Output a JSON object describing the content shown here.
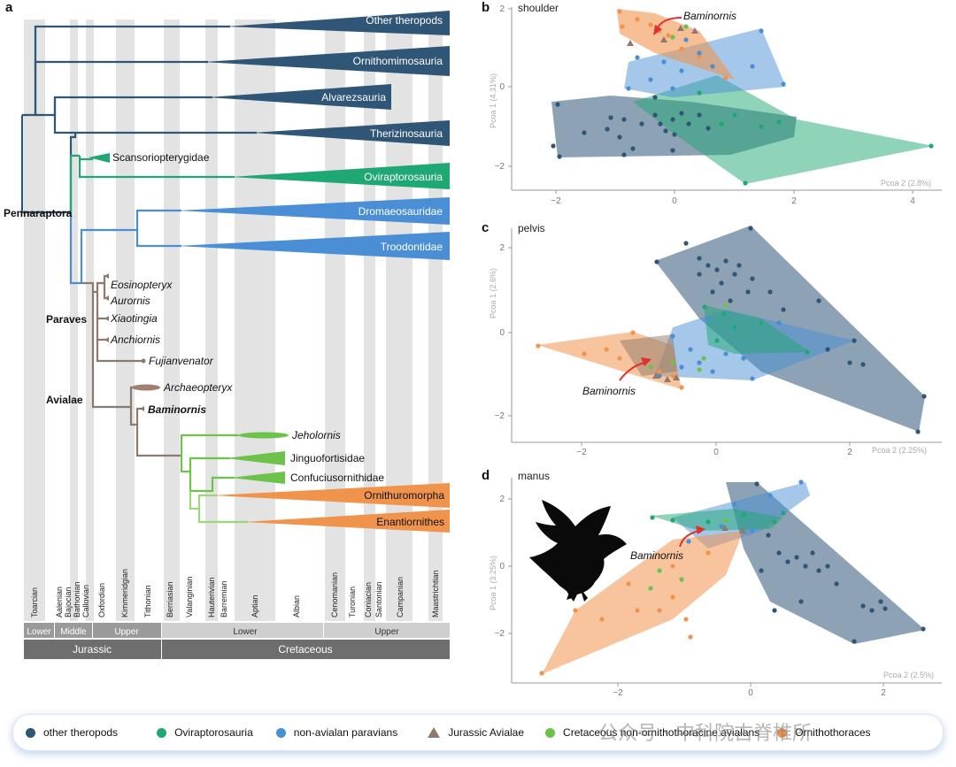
{
  "panel_a": {
    "letter": "a",
    "clades": [
      "Other theropods",
      "Ornithomimosauria",
      "Alvarezsauria",
      "Therizinosauria",
      "Oviraptorosauria",
      "Dromaeosauridae",
      "Troodontidae",
      "Ornithuromorpha",
      "Enantiornithes"
    ],
    "taxa": {
      "scansoriopterygidae": "Scansoriopterygidae",
      "eosinopteryx": "Eosinopteryx",
      "aurornis": "Aurornis",
      "xiaotingia": "Xiaotingia",
      "anchiornis": "Anchiornis",
      "fujianvenator": "Fujianvenator",
      "archaeopteryx": "Archaeopteryx",
      "baminornis": "Baminornis",
      "jeholornis": "Jeholornis",
      "jinguofortisidae": "Jinguofortisidae",
      "confuciusornithidae": "Confuciusornithidae"
    },
    "nodes": {
      "pennaraptora": "Pennaraptora",
      "paraves": "Paraves",
      "avialae": "Avialae"
    },
    "stages": [
      "Toarcian",
      "Aalenian",
      "Bajocian",
      "Bathonian",
      "Callovian",
      "Oxfordian",
      "Kimmeridgian",
      "Tithonian",
      "Berriasian",
      "Valanginian",
      "Hauterivian",
      "Barremian",
      "Aptian",
      "Albian",
      "Cenomanian",
      "Turonian",
      "Coniacian",
      "Santonian",
      "Campanian",
      "Maastrichtian"
    ],
    "epochs": {
      "lower_j": "Lower",
      "middle_j": "Middle",
      "upper_j": "Upper",
      "lower_k": "Lower",
      "upper_k": "Upper"
    },
    "periods": {
      "jurassic": "Jurassic",
      "cretaceous": "Cretaceous"
    }
  },
  "panel_b": {
    "letter": "b",
    "title": "shoulder",
    "ylabel": "Pcoa 1 (4.31%)",
    "xlabel": "Pcoa 2 (2.8%)",
    "xticks": [
      "−2",
      "0",
      "2",
      "4"
    ],
    "yticks": [
      "2",
      "0",
      "−2"
    ],
    "annotation": "Baminornis"
  },
  "panel_c": {
    "letter": "c",
    "title": "pelvis",
    "ylabel": "Pcoa 1 (2.6%)",
    "xlabel": "Pcoa 2 (2.25%)",
    "xticks": [
      "−2",
      "0",
      "2"
    ],
    "yticks": [
      "2",
      "0",
      "−2"
    ],
    "annotation": "Baminornis"
  },
  "panel_d": {
    "letter": "d",
    "title": "manus",
    "ylabel": "Pcoa 1 (3.25%)",
    "xlabel": "Pcoa 2 (2.5%)",
    "xticks": [
      "−2",
      "0",
      "2"
    ],
    "yticks": [
      "2",
      "0",
      "−2"
    ],
    "annotation": "Baminornis"
  },
  "legend": [
    {
      "label": "other theropods",
      "color": "#2f5577",
      "shape": "dot"
    },
    {
      "label": "Oviraptorosauria",
      "color": "#1fa774",
      "shape": "dot"
    },
    {
      "label": "non-avialan paravians",
      "color": "#4a8fd6",
      "shape": "dot"
    },
    {
      "label": "Jurassic Avialae",
      "color": "#8d7a6c",
      "shape": "triangle"
    },
    {
      "label": "Cretaceous non-ornithothoracine avialans",
      "color": "#6cc24a",
      "shape": "dot"
    },
    {
      "label": "Ornithothoraces",
      "color": "#f0944d",
      "shape": "dot"
    }
  ],
  "watermark": "公众号 · 中科院古脊椎所"
}
